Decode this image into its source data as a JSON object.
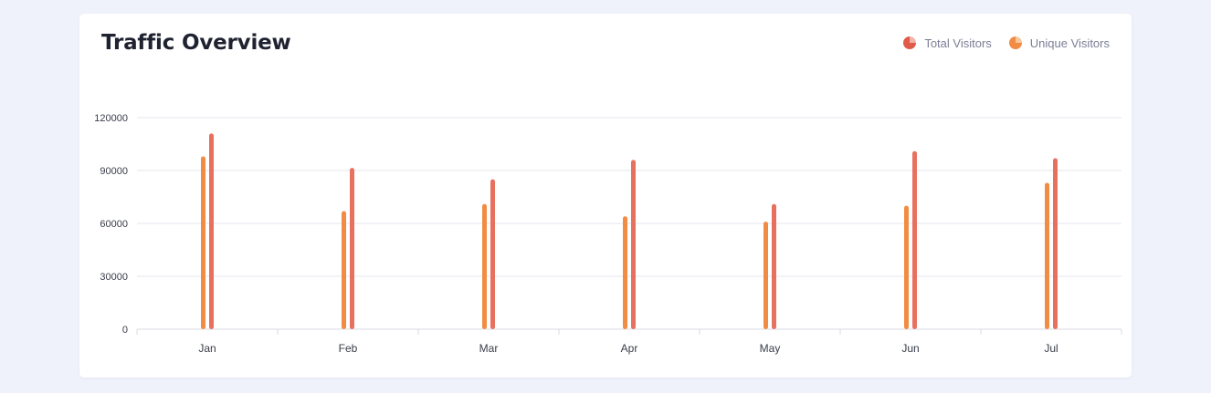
{
  "header": {
    "title": "Traffic Overview"
  },
  "legend": [
    {
      "label": "Total Visitors",
      "icon": "pie-chart-icon",
      "color": "#e8705f"
    },
    {
      "label": "Unique Visitors",
      "icon": "pie-chart-icon",
      "color": "#f28b43"
    }
  ],
  "chart_data": {
    "type": "bar",
    "title": "Traffic Overview",
    "categories": [
      "Jan",
      "Feb",
      "Mar",
      "Apr",
      "May",
      "Jun",
      "Jul"
    ],
    "series": [
      {
        "name": "Unique Visitors",
        "color": "#f28b43",
        "values": [
          98000,
          67000,
          71000,
          64000,
          61000,
          70000,
          83000
        ]
      },
      {
        "name": "Total Visitors",
        "color": "#e8705f",
        "values": [
          111000,
          91500,
          85000,
          96000,
          71000,
          101000,
          97000
        ]
      }
    ],
    "ylim": [
      0,
      120000
    ],
    "yticks": [
      0,
      30000,
      60000,
      90000,
      120000
    ],
    "grid": true,
    "legend_position": "top-right",
    "xlabel": "",
    "ylabel": ""
  }
}
